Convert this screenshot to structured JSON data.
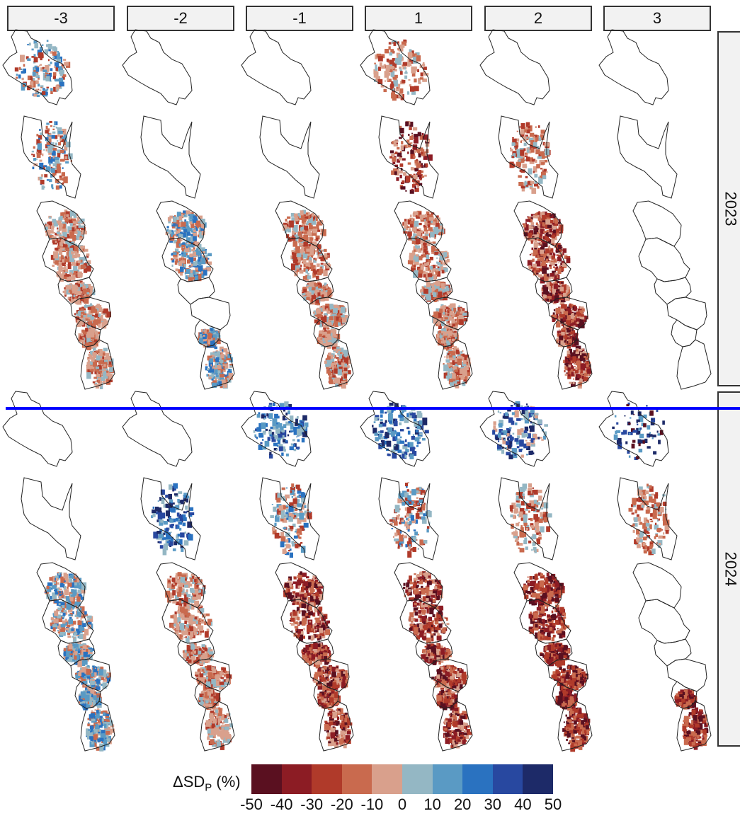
{
  "columns": [
    "-3",
    "-2",
    "-1",
    "1",
    "2",
    "3"
  ],
  "rows": [
    "2023",
    "2024"
  ],
  "legend": {
    "title_prefix": "ΔSD",
    "title_sub": "P",
    "title_suffix": " (%)",
    "ticks": [
      "-50",
      "-40",
      "-30",
      "-20",
      "-10",
      "0",
      "10",
      "20",
      "30",
      "40",
      "50"
    ],
    "colors": [
      "#5a1020",
      "#8c1c24",
      "#b03a2a",
      "#c96a4e",
      "#d9a08c",
      "#94b7c4",
      "#5a9ac4",
      "#2a72c0",
      "#2848a0",
      "#1d2a68"
    ]
  },
  "fills": {
    "2023": [
      [
        "mixed",
        "mixed",
        "mixed-red"
      ],
      [
        "none",
        "none",
        "mixed-blue"
      ],
      [
        "none",
        "none",
        "mixed-red"
      ],
      [
        "mixed-red",
        "red",
        "mixed-red"
      ],
      [
        "none",
        "red-small",
        "red"
      ],
      [
        "none",
        "none",
        "none"
      ]
    ],
    "2024": [
      [
        "none",
        "none",
        "mixed-blue"
      ],
      [
        "none",
        "blue",
        "mixed-red"
      ],
      [
        "blue",
        "mixed",
        "red"
      ],
      [
        "blue",
        "mixed",
        "red"
      ],
      [
        "navy",
        "red-small",
        "darkred"
      ],
      [
        "navy-sparse",
        "red-small",
        "darkred-south"
      ]
    ]
  }
}
